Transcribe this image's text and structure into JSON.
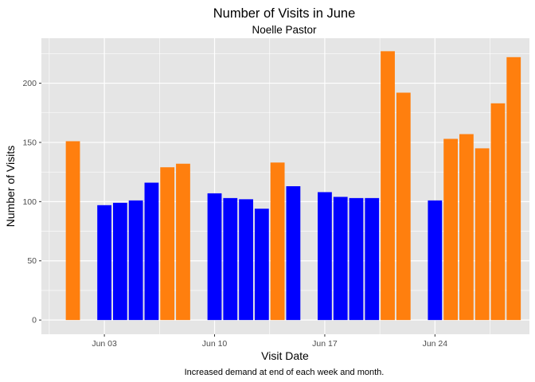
{
  "chart_data": {
    "type": "bar",
    "title": "Number of Visits in June",
    "subtitle": "Noelle Pastor",
    "xlabel": "Visit Date",
    "ylabel": "Number of Visits",
    "caption": "Increased demand at end of each week and month.",
    "xlim": [
      "2021-05-30",
      "2021-06-30"
    ],
    "ylim": [
      -12,
      238
    ],
    "x_ticks": [
      {
        "date": "2021-06-03",
        "label": "Jun 03"
      },
      {
        "date": "2021-06-10",
        "label": "Jun 10"
      },
      {
        "date": "2021-06-17",
        "label": "Jun 17"
      },
      {
        "date": "2021-06-24",
        "label": "Jun 24"
      }
    ],
    "y_ticks": [
      0,
      50,
      100,
      150,
      200
    ],
    "grid": true,
    "legend": "none",
    "colors": {
      "weekday": "#0000FF",
      "high_demand": "#FF7F0E",
      "panel": "#E5E5E5",
      "grid": "#FFFFFF"
    },
    "bars": [
      {
        "date": "2021-06-01",
        "value": 151,
        "color": "#FF7F0E"
      },
      {
        "date": "2021-06-03",
        "value": 97,
        "color": "#0000FF"
      },
      {
        "date": "2021-06-04",
        "value": 99,
        "color": "#0000FF"
      },
      {
        "date": "2021-06-05",
        "value": 101,
        "color": "#0000FF"
      },
      {
        "date": "2021-06-06",
        "value": 116,
        "color": "#0000FF"
      },
      {
        "date": "2021-06-07",
        "value": 129,
        "color": "#FF7F0E"
      },
      {
        "date": "2021-06-08",
        "value": 132,
        "color": "#FF7F0E"
      },
      {
        "date": "2021-06-10",
        "value": 107,
        "color": "#0000FF"
      },
      {
        "date": "2021-06-11",
        "value": 103,
        "color": "#0000FF"
      },
      {
        "date": "2021-06-12",
        "value": 102,
        "color": "#0000FF"
      },
      {
        "date": "2021-06-13",
        "value": 94,
        "color": "#0000FF"
      },
      {
        "date": "2021-06-14",
        "value": 133,
        "color": "#FF7F0E"
      },
      {
        "date": "2021-06-15",
        "value": 113,
        "color": "#0000FF"
      },
      {
        "date": "2021-06-17",
        "value": 108,
        "color": "#0000FF"
      },
      {
        "date": "2021-06-18",
        "value": 104,
        "color": "#0000FF"
      },
      {
        "date": "2021-06-19",
        "value": 103,
        "color": "#0000FF"
      },
      {
        "date": "2021-06-20",
        "value": 103,
        "color": "#0000FF"
      },
      {
        "date": "2021-06-21",
        "value": 227,
        "color": "#FF7F0E"
      },
      {
        "date": "2021-06-22",
        "value": 192,
        "color": "#FF7F0E"
      },
      {
        "date": "2021-06-24",
        "value": 101,
        "color": "#0000FF"
      },
      {
        "date": "2021-06-25",
        "value": 153,
        "color": "#FF7F0E"
      },
      {
        "date": "2021-06-26",
        "value": 157,
        "color": "#FF7F0E"
      },
      {
        "date": "2021-06-27",
        "value": 145,
        "color": "#FF7F0E"
      },
      {
        "date": "2021-06-28",
        "value": 183,
        "color": "#FF7F0E"
      },
      {
        "date": "2021-06-29",
        "value": 222,
        "color": "#FF7F0E"
      }
    ]
  }
}
